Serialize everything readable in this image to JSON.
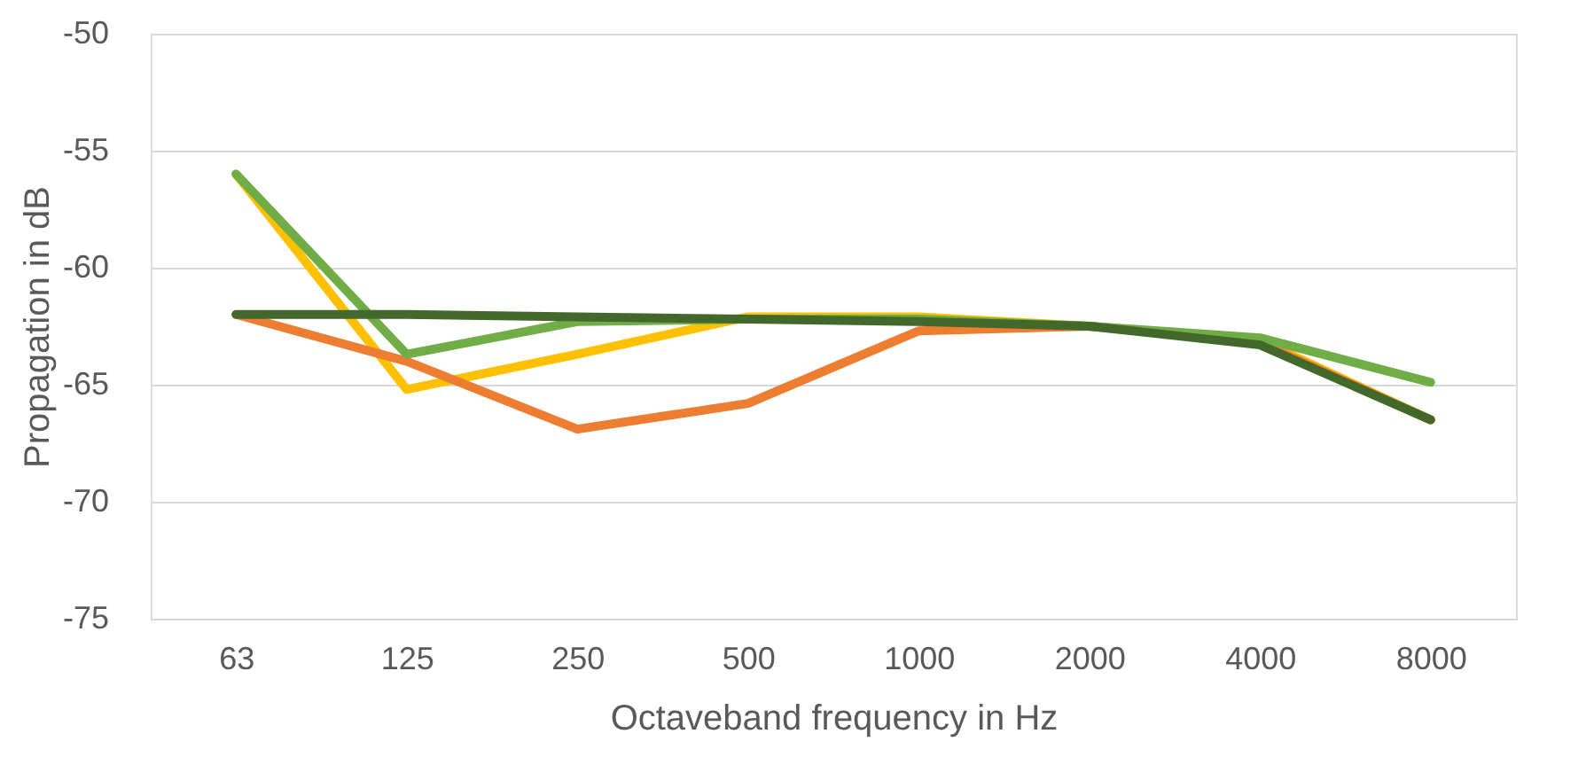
{
  "chart_data": {
    "type": "line",
    "xlabel": "Octaveband frequency in Hz",
    "ylabel": "Propagation in dB",
    "categories": [
      "63",
      "125",
      "250",
      "500",
      "1000",
      "2000",
      "4000",
      "8000"
    ],
    "series": [
      {
        "color": "#ffc000",
        "values": [
          -56.0,
          -65.2,
          -63.7,
          -62.1,
          -62.1,
          -62.5,
          -63.1,
          -66.5
        ]
      },
      {
        "color": "#ed7d31",
        "values": [
          -62.0,
          -64.0,
          -66.9,
          -65.8,
          -62.7,
          -62.5,
          -63.2,
          -66.5
        ]
      },
      {
        "color": "#70ad47",
        "values": [
          -56.0,
          -63.7,
          -62.3,
          -62.2,
          -62.2,
          -62.5,
          -63.0,
          -64.9
        ]
      },
      {
        "color": "#43682b",
        "values": [
          -62.0,
          -62.0,
          -62.1,
          -62.2,
          -62.3,
          -62.5,
          -63.3,
          -66.5
        ]
      }
    ],
    "ylim": [
      -75,
      -50
    ],
    "yticks": [
      -75,
      -70,
      -65,
      -60,
      -55,
      -50
    ],
    "grid": "y",
    "line_style": "solid"
  }
}
